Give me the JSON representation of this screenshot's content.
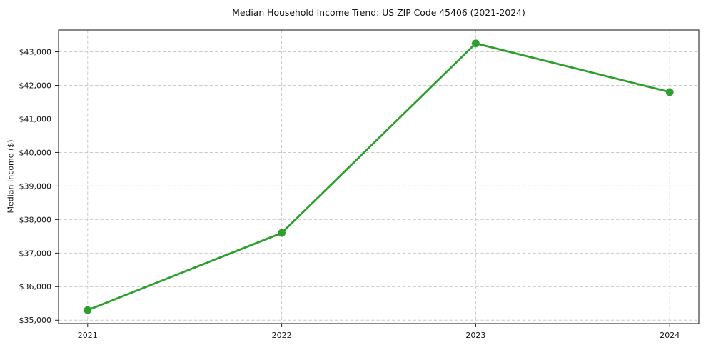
{
  "chart_data": {
    "type": "line",
    "title": "Median Household Income Trend: US ZIP Code 45406 (2021-2024)",
    "xlabel": "",
    "ylabel": "Median Income ($)",
    "categories": [
      "2021",
      "2022",
      "2023",
      "2024"
    ],
    "series": [
      {
        "name": "Median Household Income",
        "values": [
          35300,
          37600,
          43250,
          41800
        ]
      }
    ],
    "y_ticks": [
      35000,
      36000,
      37000,
      38000,
      39000,
      40000,
      41000,
      42000,
      43000
    ],
    "y_tick_labels": [
      "$35,000",
      "$36,000",
      "$37,000",
      "$38,000",
      "$39,000",
      "$40,000",
      "$41,000",
      "$42,000",
      "$43,000"
    ],
    "ylim": [
      34900,
      43650
    ],
    "x_index_lim": [
      -0.15,
      3.15
    ],
    "grid": "dashed-both-directions",
    "legend_position": "none",
    "line_color": "#2ca02c",
    "grid_color": "#cbcbcb",
    "marker": "circle"
  }
}
